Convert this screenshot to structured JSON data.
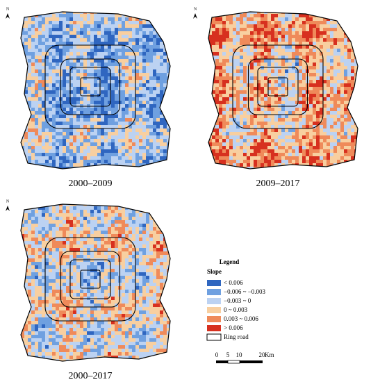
{
  "maps": [
    {
      "caption": "2000–2009"
    },
    {
      "caption": "2009–2017"
    },
    {
      "caption": "2000–2017"
    }
  ],
  "north_label": "N",
  "legend": {
    "title": "Legend",
    "subtitle": "Slope",
    "items": [
      {
        "label": "<  0.006",
        "color": "#2f66c0"
      },
      {
        "label": "−0.006 ~ −0.003",
        "color": "#6fa0e0"
      },
      {
        "label": "−0.003 ~ 0",
        "color": "#bcd2f2"
      },
      {
        "label": "0 ~ 0.003",
        "color": "#f8cfa0"
      },
      {
        "label": "0.003 ~ 0.006",
        "color": "#ef8a5a"
      },
      {
        "label": "> 0.006",
        "color": "#d7301f"
      }
    ],
    "ring_road": "Ring road"
  },
  "scale_bar": {
    "ticks": [
      "0",
      "5",
      "10",
      "20"
    ],
    "unit": "Km"
  }
}
